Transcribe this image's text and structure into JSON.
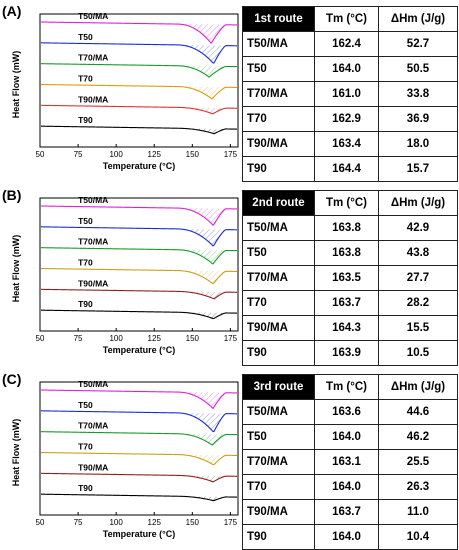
{
  "chart_data": [
    {
      "type": "line",
      "panel_label": "(A)",
      "xlabel": "Temperature (°C)",
      "ylabel": "Heat Flow (mW)",
      "xlim": [
        50,
        180
      ],
      "x_ticks": [
        50,
        75,
        100,
        125,
        150,
        175
      ],
      "series": [
        {
          "name": "T50/MA",
          "color": "#e020d8",
          "peak_x": 162.4,
          "depth": 0.95
        },
        {
          "name": "T50",
          "color": "#1a2bd0",
          "peak_x": 164.0,
          "depth": 0.92
        },
        {
          "name": "T70/MA",
          "color": "#1a9a2a",
          "peak_x": 161.0,
          "depth": 0.55
        },
        {
          "name": "T70",
          "color": "#e09a10",
          "peak_x": 162.9,
          "depth": 0.6
        },
        {
          "name": "T90/MA",
          "color": "#e03030",
          "peak_x": 163.4,
          "depth": 0.3
        },
        {
          "name": "T90",
          "color": "#000000",
          "peak_x": 164.4,
          "depth": 0.25
        }
      ],
      "table": {
        "route_label": "1st route",
        "headers": [
          "Tm (°C)",
          "ΔHm (J/g)"
        ],
        "rows": [
          {
            "sample": "T50/MA",
            "tm": "162.4",
            "dhm": "52.7"
          },
          {
            "sample": "T50",
            "tm": "164.0",
            "dhm": "50.5"
          },
          {
            "sample": "T70/MA",
            "tm": "161.0",
            "dhm": "33.8"
          },
          {
            "sample": "T70",
            "tm": "162.9",
            "dhm": "36.9"
          },
          {
            "sample": "T90/MA",
            "tm": "163.4",
            "dhm": "18.0"
          },
          {
            "sample": "T90",
            "tm": "164.4",
            "dhm": "15.7"
          }
        ]
      }
    },
    {
      "type": "line",
      "panel_label": "(B)",
      "xlabel": "Temperature (°C)",
      "ylabel": "Heat Flow (mW)",
      "xlim": [
        50,
        180
      ],
      "x_ticks": [
        50,
        75,
        100,
        125,
        150,
        175
      ],
      "series": [
        {
          "name": "T50/MA",
          "color": "#e020d8",
          "peak_x": 163.8,
          "depth": 0.85
        },
        {
          "name": "T50",
          "color": "#1a2bd0",
          "peak_x": 163.8,
          "depth": 0.85
        },
        {
          "name": "T70/MA",
          "color": "#1a9a2a",
          "peak_x": 163.5,
          "depth": 0.7
        },
        {
          "name": "T70",
          "color": "#c8a020",
          "peak_x": 163.7,
          "depth": 0.65
        },
        {
          "name": "T90/MA",
          "color": "#8a2020",
          "peak_x": 164.3,
          "depth": 0.35
        },
        {
          "name": "T90",
          "color": "#000000",
          "peak_x": 163.9,
          "depth": 0.3
        }
      ],
      "table": {
        "route_label": "2nd route",
        "headers": [
          "Tm (°C)",
          "ΔHm (J/g)"
        ],
        "rows": [
          {
            "sample": "T50/MA",
            "tm": "163.8",
            "dhm": "42.9"
          },
          {
            "sample": "T50",
            "tm": "163.8",
            "dhm": "43.8"
          },
          {
            "sample": "T70/MA",
            "tm": "163.5",
            "dhm": "27.7"
          },
          {
            "sample": "T70",
            "tm": "163.7",
            "dhm": "28.2"
          },
          {
            "sample": "T90/MA",
            "tm": "164.3",
            "dhm": "15.5"
          },
          {
            "sample": "T90",
            "tm": "163.9",
            "dhm": "10.5"
          }
        ]
      }
    },
    {
      "type": "line",
      "panel_label": "(C)",
      "xlabel": "Temperature (°C)",
      "ylabel": "Heat Flow (mW)",
      "xlim": [
        50,
        180
      ],
      "x_ticks": [
        50,
        75,
        100,
        125,
        150,
        175
      ],
      "series": [
        {
          "name": "T50/MA",
          "color": "#e020d8",
          "peak_x": 163.6,
          "depth": 0.8
        },
        {
          "name": "T50",
          "color": "#1a2bd0",
          "peak_x": 164.0,
          "depth": 0.95
        },
        {
          "name": "T70/MA",
          "color": "#1a9a2a",
          "peak_x": 163.1,
          "depth": 0.55
        },
        {
          "name": "T70",
          "color": "#c8a020",
          "peak_x": 164.0,
          "depth": 0.5
        },
        {
          "name": "T90/MA",
          "color": "#8a2020",
          "peak_x": 163.7,
          "depth": 0.3
        },
        {
          "name": "T90",
          "color": "#000000",
          "peak_x": 164.0,
          "depth": 0.2
        }
      ],
      "table": {
        "route_label": "3rd route",
        "headers": [
          "Tm (°C)",
          "ΔHm (J/g)"
        ],
        "rows": [
          {
            "sample": "T50/MA",
            "tm": "163.6",
            "dhm": "44.6"
          },
          {
            "sample": "T50",
            "tm": "164.0",
            "dhm": "46.2"
          },
          {
            "sample": "T70/MA",
            "tm": "163.1",
            "dhm": "25.5"
          },
          {
            "sample": "T70",
            "tm": "164.0",
            "dhm": "26.3"
          },
          {
            "sample": "T90/MA",
            "tm": "163.7",
            "dhm": "11.0"
          },
          {
            "sample": "T90",
            "tm": "164.0",
            "dhm": "10.4"
          }
        ]
      }
    }
  ]
}
